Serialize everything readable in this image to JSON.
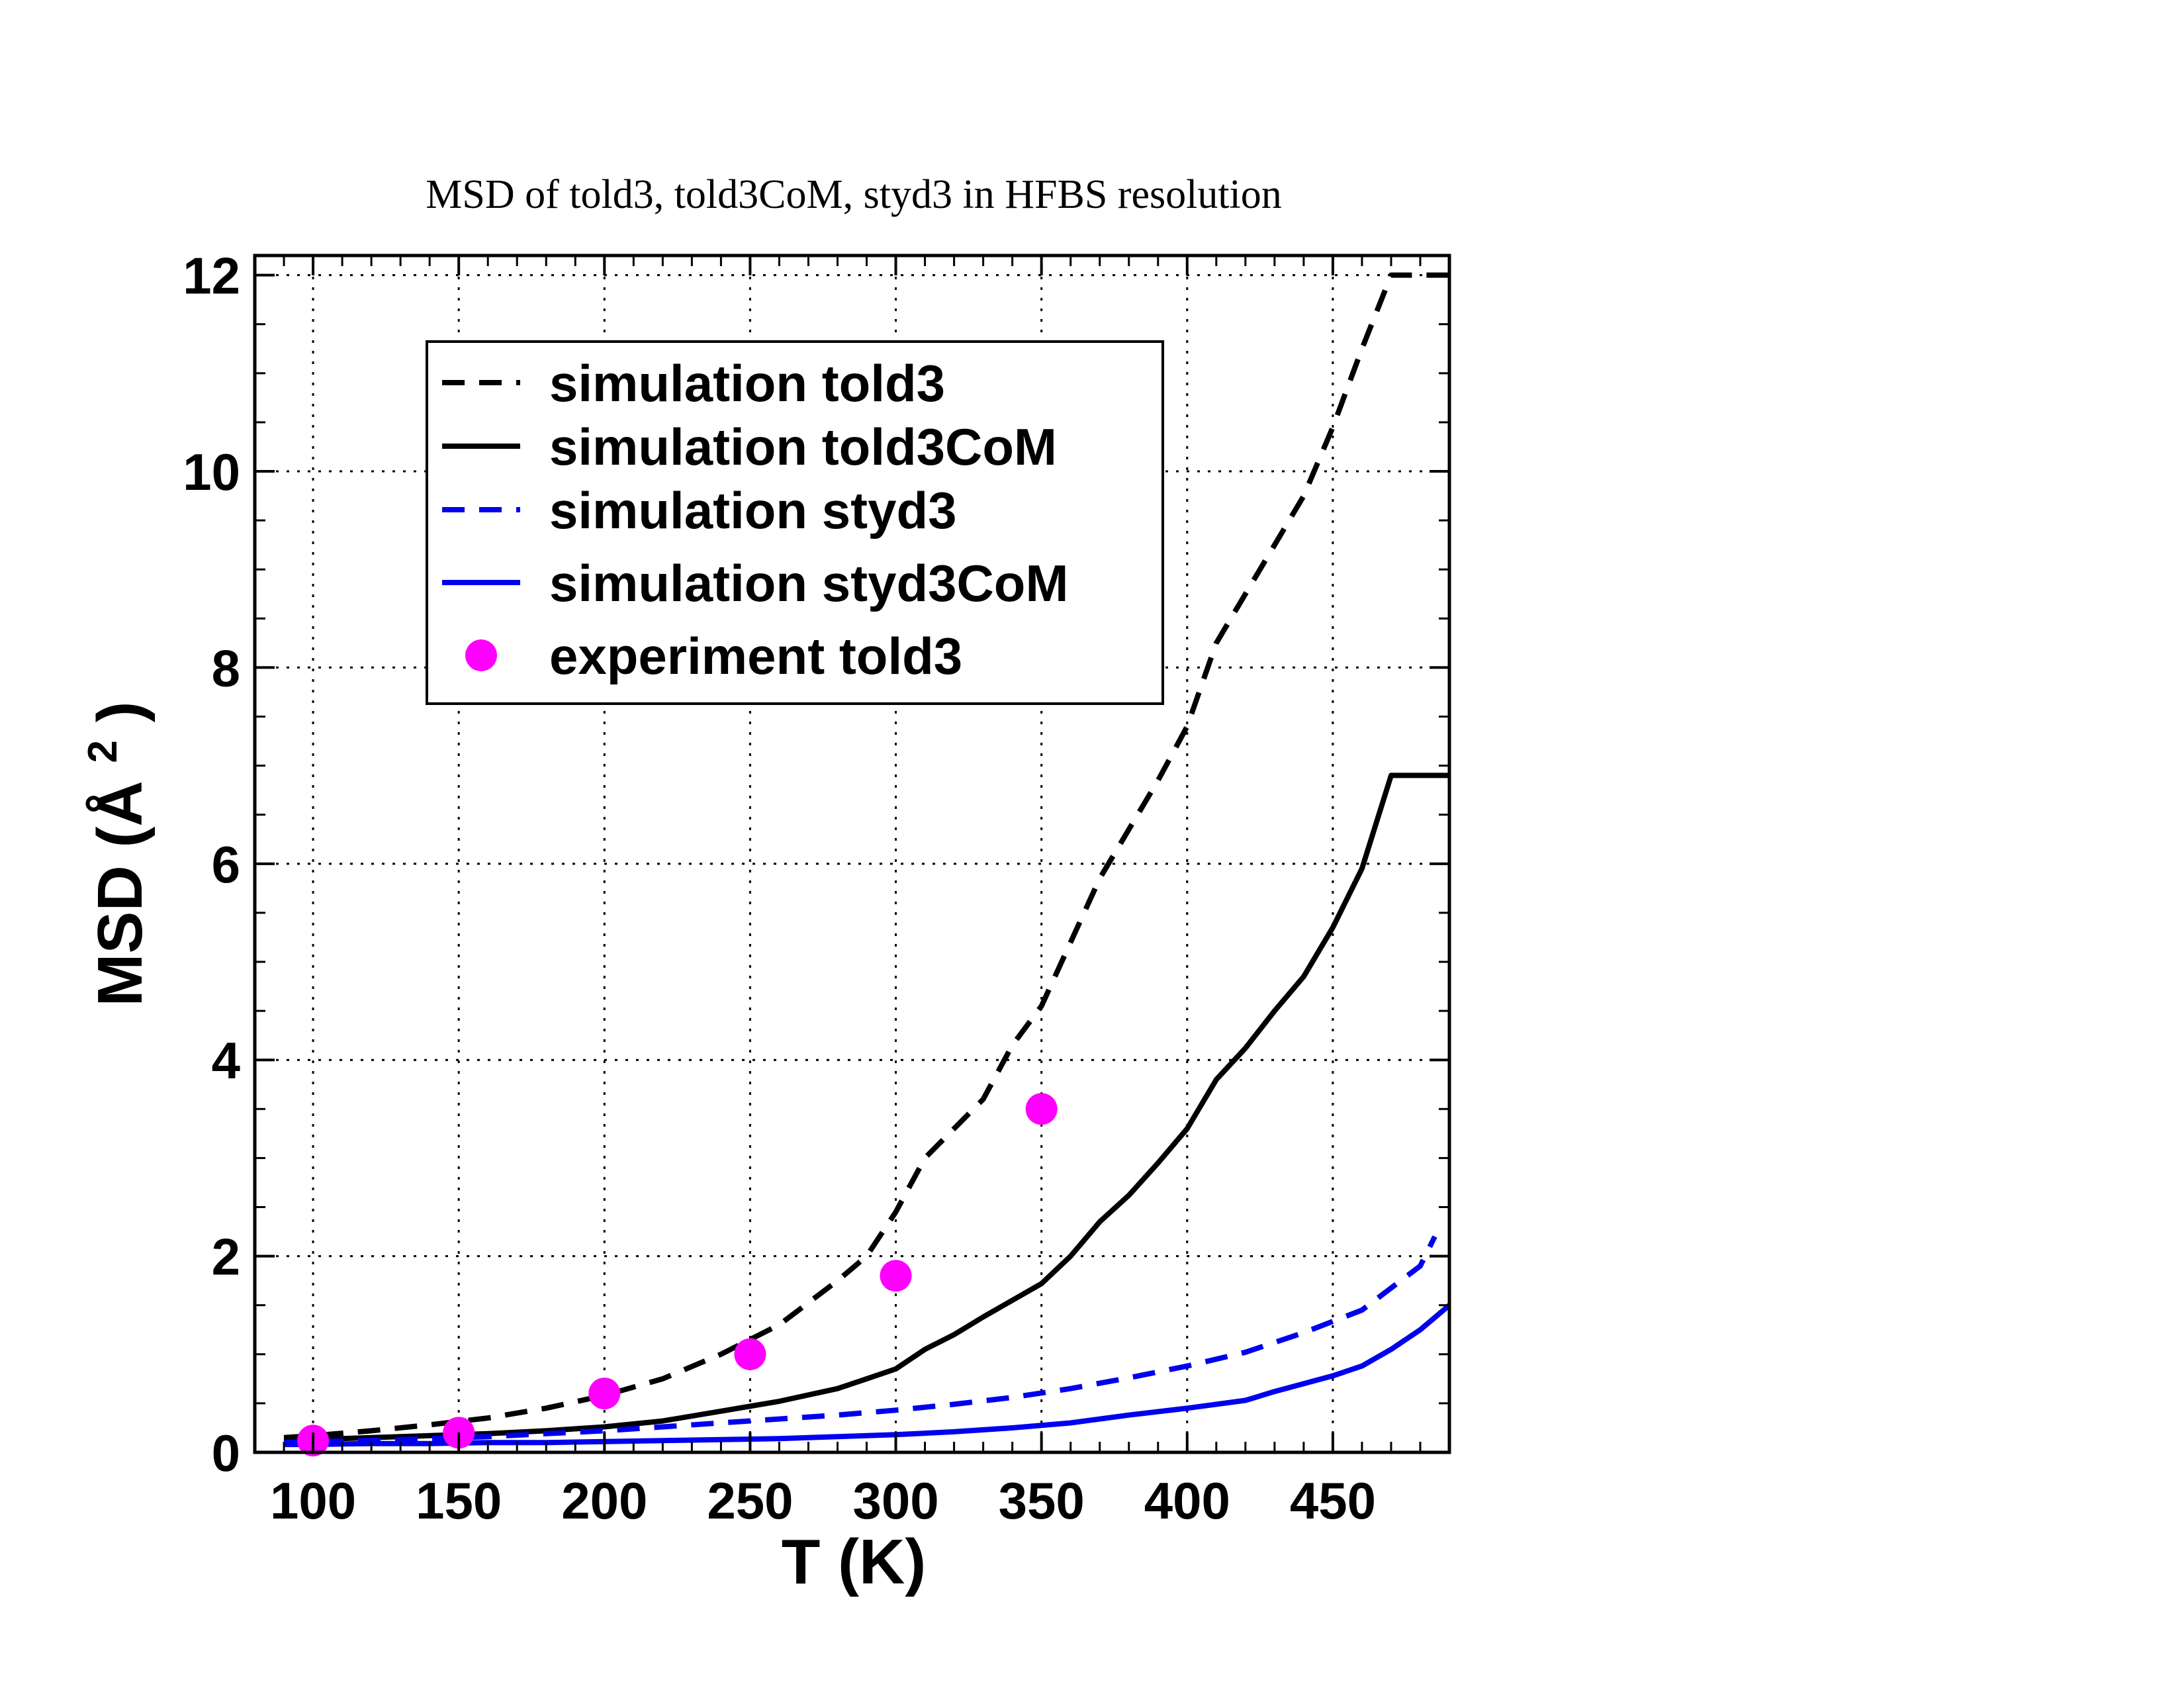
{
  "chart_data": {
    "type": "line",
    "title": "MSD of told3, told3CoM, styd3 in HFBS resolution",
    "xlabel": "T (K)",
    "ylabel_main": "MSD (Å",
    "ylabel_sup": "2",
    "ylabel_close": ")",
    "xlim": [
      80,
      490
    ],
    "ylim": [
      0,
      12.2
    ],
    "x_ticks": [
      100,
      150,
      200,
      250,
      300,
      350,
      400,
      450
    ],
    "x_tick_labels": [
      "100",
      "150",
      "200",
      "250",
      "300",
      "350",
      "400",
      "450"
    ],
    "y_ticks": [
      0,
      2,
      4,
      6,
      8,
      10,
      12
    ],
    "y_tick_labels": [
      "0",
      "2",
      "4",
      "6",
      "8",
      "10",
      "12"
    ],
    "grid": true,
    "legend_position": "top-left",
    "series": [
      {
        "name": "simulation told3",
        "style": "dashed",
        "color": "#000000",
        "x": [
          90,
          100,
          120,
          140,
          160,
          180,
          200,
          220,
          240,
          260,
          280,
          290,
          300,
          310,
          320,
          330,
          340,
          350,
          360,
          370,
          380,
          390,
          400,
          410,
          420,
          430,
          440,
          450,
          460,
          470,
          480,
          490
        ],
        "y": [
          0.15,
          0.17,
          0.22,
          0.28,
          0.35,
          0.45,
          0.58,
          0.75,
          1.0,
          1.3,
          1.75,
          2.0,
          2.45,
          3.0,
          3.3,
          3.6,
          4.15,
          4.55,
          5.2,
          5.85,
          6.35,
          6.85,
          7.4,
          8.25,
          8.75,
          9.25,
          9.75,
          10.45,
          11.25,
          12.0,
          12.0,
          12.0
        ]
      },
      {
        "name": "simulation told3CoM",
        "style": "solid",
        "color": "#000000",
        "x": [
          90,
          100,
          120,
          140,
          160,
          180,
          200,
          220,
          240,
          260,
          280,
          290,
          300,
          310,
          320,
          330,
          340,
          350,
          360,
          370,
          380,
          390,
          400,
          410,
          420,
          430,
          440,
          450,
          460,
          470,
          480,
          490
        ],
        "y": [
          0.12,
          0.13,
          0.15,
          0.17,
          0.19,
          0.22,
          0.26,
          0.32,
          0.42,
          0.52,
          0.65,
          0.75,
          0.85,
          1.05,
          1.2,
          1.38,
          1.55,
          1.72,
          2.0,
          2.35,
          2.62,
          2.95,
          3.3,
          3.8,
          4.12,
          4.5,
          4.85,
          5.35,
          5.95,
          6.9,
          6.9,
          6.9
        ]
      },
      {
        "name": "simulation styd3",
        "style": "dashed",
        "color": "#0000ee",
        "x": [
          90,
          100,
          120,
          140,
          160,
          180,
          200,
          220,
          240,
          260,
          280,
          300,
          320,
          340,
          360,
          380,
          400,
          420,
          440,
          460,
          480,
          485
        ],
        "y": [
          0.1,
          0.11,
          0.12,
          0.14,
          0.16,
          0.19,
          0.22,
          0.26,
          0.3,
          0.34,
          0.38,
          0.43,
          0.49,
          0.56,
          0.65,
          0.76,
          0.88,
          1.02,
          1.22,
          1.45,
          1.9,
          2.2
        ]
      },
      {
        "name": "simulation styd3CoM",
        "style": "solid",
        "color": "#0000ee",
        "x": [
          90,
          100,
          120,
          140,
          160,
          180,
          200,
          220,
          240,
          260,
          280,
          300,
          320,
          340,
          360,
          380,
          400,
          420,
          430,
          440,
          450,
          460,
          470,
          480,
          490
        ],
        "y": [
          0.08,
          0.08,
          0.09,
          0.09,
          0.1,
          0.1,
          0.11,
          0.12,
          0.13,
          0.14,
          0.16,
          0.18,
          0.21,
          0.25,
          0.3,
          0.38,
          0.45,
          0.53,
          0.62,
          0.7,
          0.78,
          0.88,
          1.05,
          1.25,
          1.5
        ]
      },
      {
        "name": "experiment told3",
        "style": "marker",
        "color": "#ff00ff",
        "x": [
          100,
          150,
          200,
          250,
          300,
          350
        ],
        "y": [
          0.12,
          0.2,
          0.6,
          1.0,
          1.8,
          3.5
        ]
      }
    ]
  }
}
